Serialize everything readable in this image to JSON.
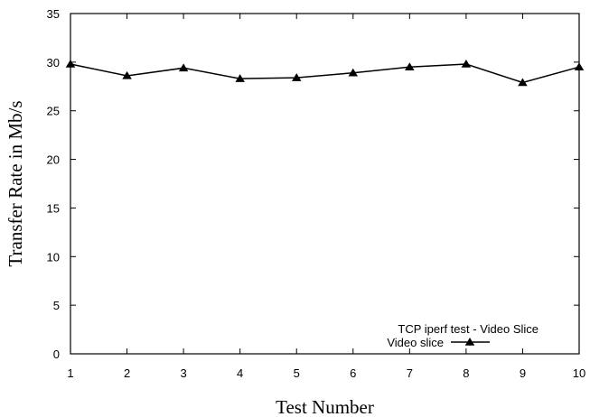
{
  "chart_data": {
    "type": "line",
    "xlabel": "Test Number",
    "ylabel": "Transfer Rate in Mb/s",
    "xlim": [
      1,
      10
    ],
    "ylim": [
      0,
      35
    ],
    "x_ticks": [
      1,
      2,
      3,
      4,
      5,
      6,
      7,
      8,
      9,
      10
    ],
    "y_ticks": [
      0,
      5,
      10,
      15,
      20,
      25,
      30,
      35
    ],
    "grid": false,
    "legend": {
      "title": "TCP iperf test - Video Slice",
      "placement": "bottom-right"
    },
    "series": [
      {
        "name": "Video slice",
        "marker": "triangle",
        "color": "#000000",
        "x": [
          1,
          2,
          3,
          4,
          5,
          6,
          7,
          8,
          9,
          10
        ],
        "y": [
          29.8,
          28.6,
          29.4,
          28.3,
          28.4,
          28.9,
          29.5,
          29.8,
          27.9,
          29.5
        ]
      }
    ]
  }
}
